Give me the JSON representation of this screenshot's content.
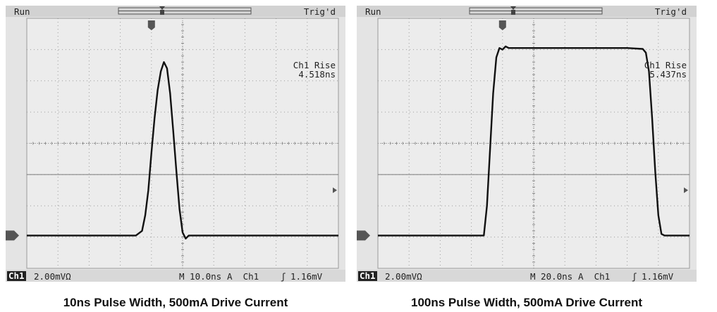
{
  "chart_data": [
    {
      "type": "line",
      "title": "10ns Pulse Width, 500mA Drive Current",
      "status": "Run",
      "trigger_status": "Trig'd",
      "measurement_label": "Ch1 Rise",
      "measurement_value": "4.518ns",
      "channel_label": "Ch1",
      "vertical_scale": "2.00mVΩ",
      "timebase": "M 10.0ns",
      "trigger_source": "A  Ch1",
      "trigger_slope": "ʃ",
      "trigger_level": "1.16mV",
      "xlim": [
        -40,
        60
      ],
      "ylim": [
        -4,
        4
      ],
      "series": [
        {
          "x": [
            -40,
            -5,
            -3,
            -2,
            -1,
            0,
            1,
            2,
            3,
            4,
            5,
            6,
            7,
            8,
            9,
            10,
            11,
            12,
            60
          ],
          "values": [
            -2.95,
            -2.95,
            -2.8,
            -2.3,
            -1.5,
            -0.3,
            0.8,
            1.7,
            2.3,
            2.6,
            2.4,
            1.6,
            0.4,
            -0.9,
            -2.1,
            -2.85,
            -3.05,
            -2.95,
            -2.95
          ]
        }
      ]
    },
    {
      "type": "line",
      "title": "100ns Pulse Width, 500mA Drive Current",
      "status": "Run",
      "trigger_status": "Trig'd",
      "measurement_label": "Ch1 Rise",
      "measurement_value": "5.437ns",
      "channel_label": "Ch1",
      "vertical_scale": "2.00mVΩ",
      "timebase": "M 20.0ns",
      "trigger_source": "A  Ch1",
      "trigger_slope": "ʃ",
      "trigger_level": "1.16mV",
      "xlim": [
        -80,
        120
      ],
      "ylim": [
        -4,
        4
      ],
      "series": [
        {
          "x": [
            -80,
            -12,
            -10,
            -8,
            -6,
            -4,
            -2,
            0,
            2,
            4,
            8,
            20,
            50,
            80,
            90,
            92,
            94,
            96,
            98,
            100,
            102,
            104,
            120
          ],
          "values": [
            -2.95,
            -2.95,
            -2.0,
            -0.2,
            1.6,
            2.75,
            3.05,
            3.0,
            3.1,
            3.05,
            3.05,
            3.05,
            3.05,
            3.05,
            3.02,
            2.9,
            2.3,
            0.8,
            -0.9,
            -2.3,
            -2.9,
            -2.95,
            -2.95
          ]
        }
      ]
    }
  ]
}
